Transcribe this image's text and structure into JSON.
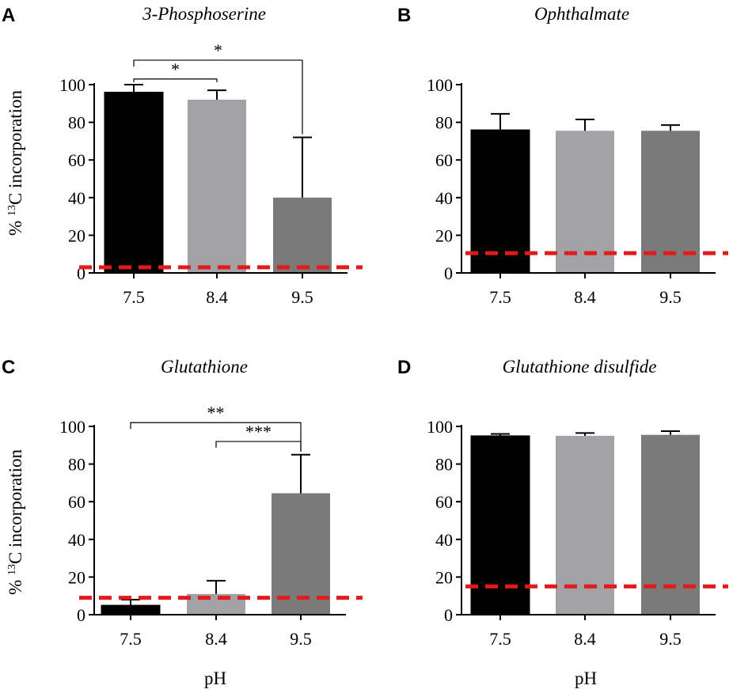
{
  "figure": {
    "xlabel": "pH",
    "ylabel_prefix": "% ",
    "ylabel_sup": "13",
    "ylabel_suffix": "C incorporation"
  },
  "chart_data": [
    {
      "panel": "A",
      "type": "bar",
      "title": "3-Phosphoserine",
      "categories": [
        "7.5",
        "8.4",
        "9.5"
      ],
      "values": [
        96,
        92,
        40
      ],
      "errors": [
        4,
        5,
        32
      ],
      "bar_colors": [
        "#000000",
        "#a2a2a6",
        "#7a7a7a"
      ],
      "ylim": [
        0,
        100
      ],
      "yticks": [
        "0",
        "20",
        "40",
        "60",
        "80",
        "100"
      ],
      "xlabel": "",
      "ylabel": "% 13C incorporation",
      "baseline": 3,
      "significance": [
        {
          "from": 0,
          "to": 1,
          "label": "*",
          "bracket_y": 103
        },
        {
          "from": 0,
          "to": 2,
          "label": "*",
          "bracket_y": 113
        }
      ]
    },
    {
      "panel": "B",
      "type": "bar",
      "title": "Ophthalmate",
      "categories": [
        "7.5",
        "8.4",
        "9.5"
      ],
      "values": [
        76,
        75.5,
        75.5
      ],
      "errors": [
        8.5,
        6,
        3
      ],
      "bar_colors": [
        "#000000",
        "#a2a2a6",
        "#7a7a7a"
      ],
      "ylim": [
        0,
        100
      ],
      "yticks": [
        "0",
        "20",
        "40",
        "60",
        "80",
        "100"
      ],
      "xlabel": "",
      "ylabel": "",
      "baseline": 10.5,
      "significance": []
    },
    {
      "panel": "C",
      "type": "bar",
      "title": "Glutathione",
      "categories": [
        "7.5",
        "8.4",
        "9.5"
      ],
      "values": [
        5,
        11,
        64.5
      ],
      "errors": [
        3,
        7,
        20.5
      ],
      "bar_colors": [
        "#000000",
        "#a2a2a6",
        "#7a7a7a"
      ],
      "ylim": [
        0,
        100
      ],
      "yticks": [
        "0",
        "20",
        "40",
        "60",
        "80",
        "100"
      ],
      "xlabel": "pH",
      "ylabel": "% 13C incorporation",
      "baseline": 9,
      "significance": [
        {
          "from": 0,
          "to": 2,
          "label": "**",
          "bracket_y": 102
        },
        {
          "from": 1,
          "to": 2,
          "label": "***",
          "bracket_y": 92
        }
      ]
    },
    {
      "panel": "D",
      "type": "bar",
      "title": "Glutathione disulfide",
      "categories": [
        "7.5",
        "8.4",
        "9.5"
      ],
      "values": [
        95,
        95,
        95.5
      ],
      "errors": [
        1,
        1.5,
        2
      ],
      "bar_colors": [
        "#000000",
        "#a2a2a6",
        "#7a7a7a"
      ],
      "ylim": [
        0,
        100
      ],
      "yticks": [
        "0",
        "20",
        "40",
        "60",
        "80",
        "100"
      ],
      "xlabel": "pH",
      "ylabel": "",
      "baseline": 15,
      "significance": []
    }
  ]
}
